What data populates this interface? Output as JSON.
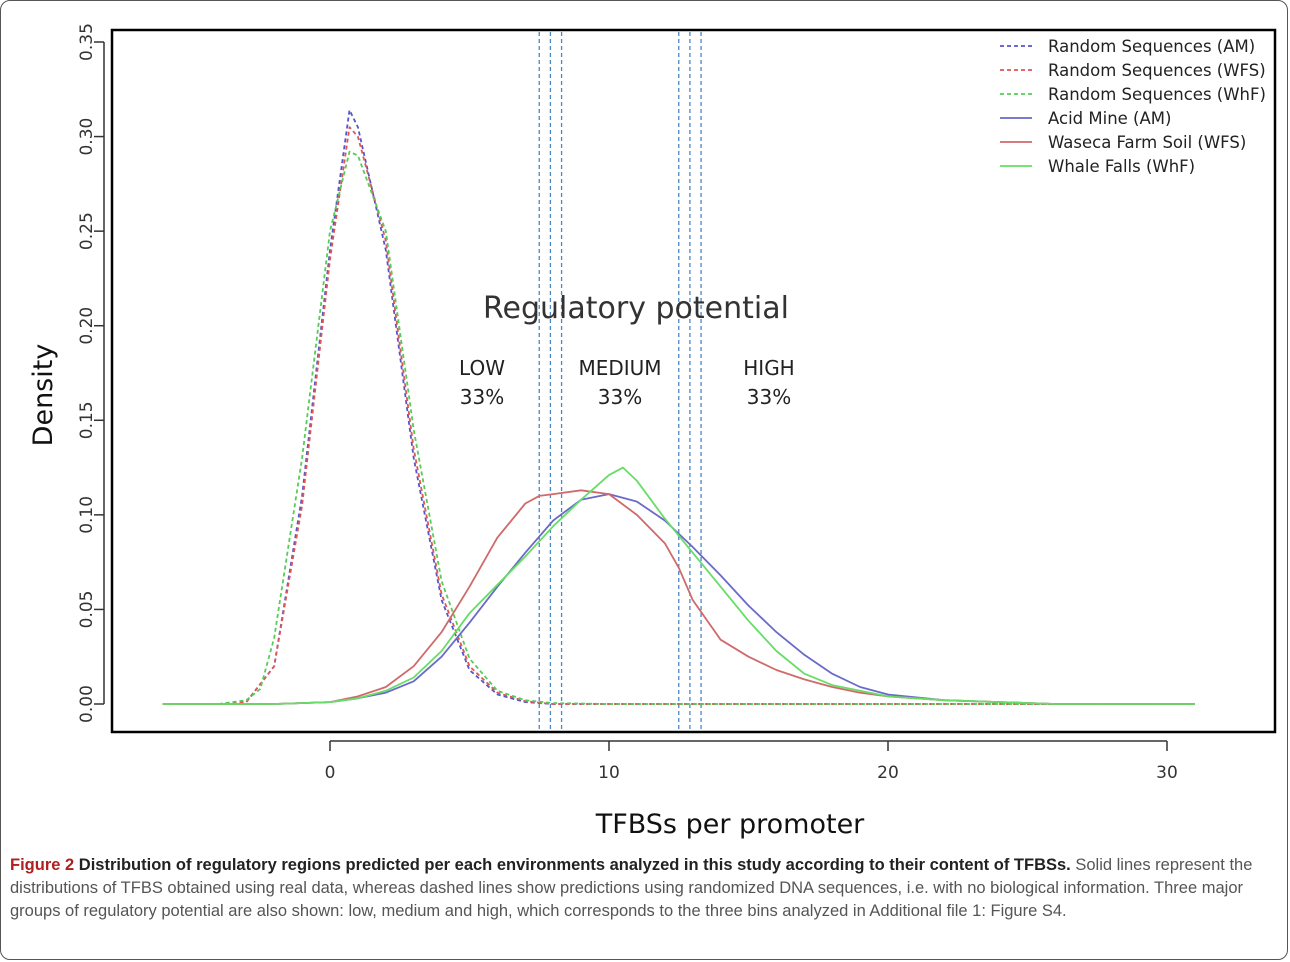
{
  "chart_data": {
    "type": "line",
    "xlabel": "TFBSs per promoter",
    "ylabel": "Density",
    "xlim": [
      -6.5,
      32.5
    ],
    "ylim": [
      -0.015,
      0.355
    ],
    "x_ticks": [
      0,
      10,
      20,
      30
    ],
    "y_ticks": [
      "0.00",
      "0.05",
      "0.10",
      "0.15",
      "0.20",
      "0.25",
      "0.30",
      "0.35"
    ],
    "legend_position": "top-right",
    "annotation": {
      "title": "Regulatory potential",
      "bins": [
        {
          "name": "LOW",
          "percent": "33%"
        },
        {
          "name": "MEDIUM",
          "percent": "33%"
        },
        {
          "name": "HIGH",
          "percent": "33%"
        }
      ]
    },
    "bin_boundaries": [
      7.5,
      7.9,
      8.3,
      12.5,
      12.9,
      13.3
    ],
    "series": [
      {
        "name": "Random Sequences (AM)",
        "style": "dashed",
        "color": "#5555cc",
        "x": [
          -6,
          -4,
          -3,
          -2,
          -1,
          0,
          0.7,
          1,
          2,
          3,
          4,
          5,
          6,
          7,
          8,
          10,
          20,
          31
        ],
        "y": [
          0,
          0,
          0.001,
          0.02,
          0.11,
          0.24,
          0.314,
          0.305,
          0.24,
          0.13,
          0.055,
          0.018,
          0.005,
          0.001,
          0,
          0,
          0,
          0
        ]
      },
      {
        "name": "Random Sequences (WFS)",
        "style": "dashed",
        "color": "#e05555",
        "x": [
          -6,
          -4,
          -3,
          -2,
          -1,
          0,
          0.7,
          1,
          2,
          3,
          4,
          5,
          6,
          7,
          8,
          10,
          20,
          31
        ],
        "y": [
          0,
          0,
          0.001,
          0.02,
          0.105,
          0.235,
          0.305,
          0.3,
          0.245,
          0.135,
          0.058,
          0.02,
          0.006,
          0.0015,
          0,
          0,
          0,
          0
        ]
      },
      {
        "name": "Random Sequences (WhF)",
        "style": "dashed",
        "color": "#55cc55",
        "x": [
          -6,
          -4,
          -3,
          -2.5,
          -2,
          -1,
          0,
          0.7,
          1,
          2,
          3,
          4,
          5,
          6,
          7,
          8,
          10,
          20,
          31
        ],
        "y": [
          0,
          0,
          0.002,
          0.008,
          0.035,
          0.13,
          0.25,
          0.292,
          0.29,
          0.25,
          0.145,
          0.065,
          0.024,
          0.007,
          0.002,
          0.0005,
          0,
          0,
          0
        ]
      },
      {
        "name": "Acid Mine  (AM)",
        "style": "solid",
        "color": "#6a6ac8",
        "x": [
          -6,
          -2,
          0,
          1,
          2,
          3,
          4,
          5,
          6,
          7,
          8,
          9,
          10,
          11,
          12,
          13,
          14,
          15,
          16,
          17,
          18,
          19,
          20,
          22,
          24,
          26,
          31
        ],
        "y": [
          0,
          0,
          0.001,
          0.003,
          0.006,
          0.012,
          0.025,
          0.043,
          0.062,
          0.08,
          0.097,
          0.108,
          0.111,
          0.107,
          0.097,
          0.083,
          0.068,
          0.052,
          0.038,
          0.026,
          0.016,
          0.009,
          0.005,
          0.002,
          0.001,
          0,
          0
        ]
      },
      {
        "name": "Waseca Farm Soil (WFS)",
        "style": "solid",
        "color": "#d06a6a",
        "x": [
          -6,
          -2,
          0,
          1,
          2,
          3,
          4,
          5,
          6,
          7,
          7.5,
          8,
          9,
          10,
          11,
          12,
          12.5,
          13,
          14,
          15,
          16,
          17,
          18,
          19,
          20,
          22,
          24,
          26,
          31
        ],
        "y": [
          0,
          0,
          0.001,
          0.004,
          0.009,
          0.02,
          0.038,
          0.062,
          0.088,
          0.106,
          0.11,
          0.111,
          0.113,
          0.111,
          0.1,
          0.085,
          0.072,
          0.055,
          0.034,
          0.025,
          0.018,
          0.013,
          0.009,
          0.006,
          0.004,
          0.002,
          0.001,
          0,
          0
        ]
      },
      {
        "name": "Whale Falls (WhF)",
        "style": "solid",
        "color": "#66dd66",
        "x": [
          -6,
          -2,
          0,
          1,
          2,
          3,
          4,
          5,
          6,
          7,
          8,
          9,
          10,
          10.5,
          11,
          12,
          13,
          14,
          15,
          16,
          17,
          18,
          19,
          20,
          22,
          24,
          26,
          31
        ],
        "y": [
          0,
          0,
          0.001,
          0.003,
          0.007,
          0.014,
          0.028,
          0.048,
          0.063,
          0.078,
          0.094,
          0.108,
          0.121,
          0.125,
          0.118,
          0.098,
          0.08,
          0.062,
          0.044,
          0.028,
          0.016,
          0.01,
          0.007,
          0.004,
          0.002,
          0.001,
          0,
          0
        ]
      }
    ]
  },
  "caption": {
    "figure_label": "Figure 2",
    "title": "Distribution of regulatory regions predicted per each environments analyzed in this study according to their content of TFBSs.",
    "body": "Solid lines represent the distributions of TFBS obtained using real data, whereas dashed lines show predictions using randomized DNA sequences, i.e. with no biological information. Three major groups of regulatory potential are also shown: low, medium and high, which corresponds to the three bins analyzed in Additional file 1: Figure S4."
  }
}
